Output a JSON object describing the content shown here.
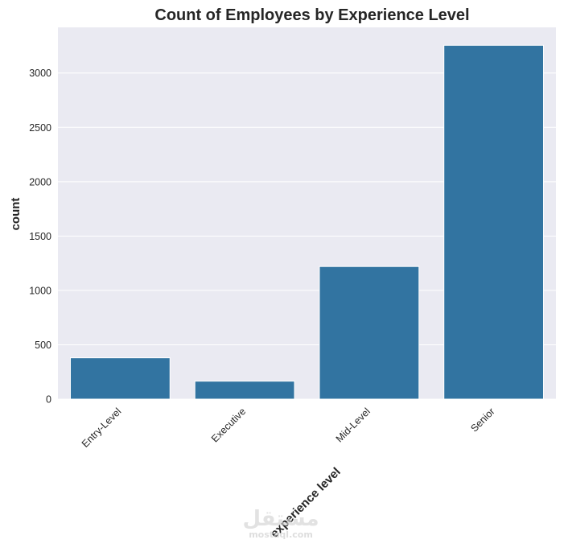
{
  "chart_data": {
    "type": "bar",
    "title": "Count of Employees by Experience Level",
    "xlabel": "experience level",
    "ylabel": "count",
    "categories": [
      "Entry-Level",
      "Executive",
      "Mid-Level",
      "Senior"
    ],
    "values": [
      380,
      165,
      1220,
      3255
    ],
    "ylim": [
      0,
      3420
    ],
    "yticks": [
      0,
      500,
      1000,
      1500,
      2000,
      2500,
      3000
    ],
    "ytick_labels": [
      "0",
      "500",
      "1000",
      "1500",
      "2000",
      "2500",
      "3000"
    ],
    "grid": true,
    "legend": "none",
    "colors": {
      "bar": "#3274a1",
      "background": "#eaeaf2",
      "grid": "#ffffff",
      "text": "#262626"
    }
  },
  "watermark": {
    "brand_arabic": "مستقل",
    "site": "mostaql.com"
  }
}
